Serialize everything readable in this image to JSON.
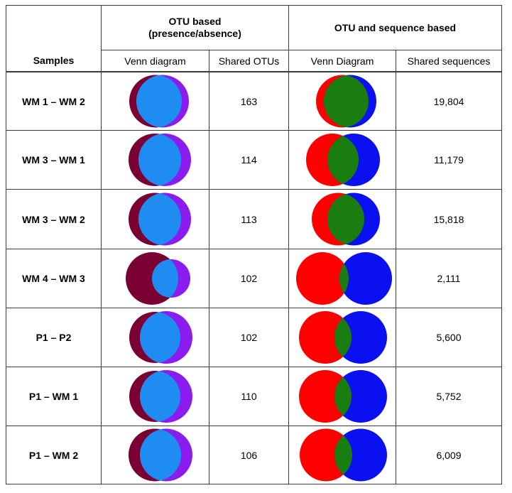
{
  "header": {
    "group_otu_line1": "OTU based",
    "group_otu_line2": "(presence/absence)",
    "group_seq": "OTU and sequence based",
    "col_samples": "Samples",
    "col_venn1": "Venn diagram",
    "col_shared_otus": "Shared OTUs",
    "col_venn2": "Venn Diagram",
    "col_shared_seqs": "Shared sequences"
  },
  "colors": {
    "otu_left": "#7a0033",
    "otu_right": "#8a1cf0",
    "otu_overlap": "#1e8cf0",
    "seq_left": "#ff0000",
    "seq_right": "#0a10f0",
    "seq_overlap": "#1a7d10"
  },
  "rows": [
    {
      "sample": "WM 1 – WM 2",
      "shared_otus": "163",
      "shared_sequences": "19,804"
    },
    {
      "sample": "WM 3 – WM 1",
      "shared_otus": "114",
      "shared_sequences": "11,179"
    },
    {
      "sample": "WM 3 – WM 2",
      "shared_otus": "113",
      "shared_sequences": "15,818"
    },
    {
      "sample": "WM 4 – WM 3",
      "shared_otus": "102",
      "shared_sequences": "2,111"
    },
    {
      "sample": "P1 – P2",
      "shared_otus": "102",
      "shared_sequences": "5,600"
    },
    {
      "sample": "P1 – WM 1",
      "shared_otus": "110",
      "shared_sequences": "5,752"
    },
    {
      "sample": "P1 – WM 2",
      "shared_otus": "106",
      "shared_sequences": "6,009"
    }
  ]
}
